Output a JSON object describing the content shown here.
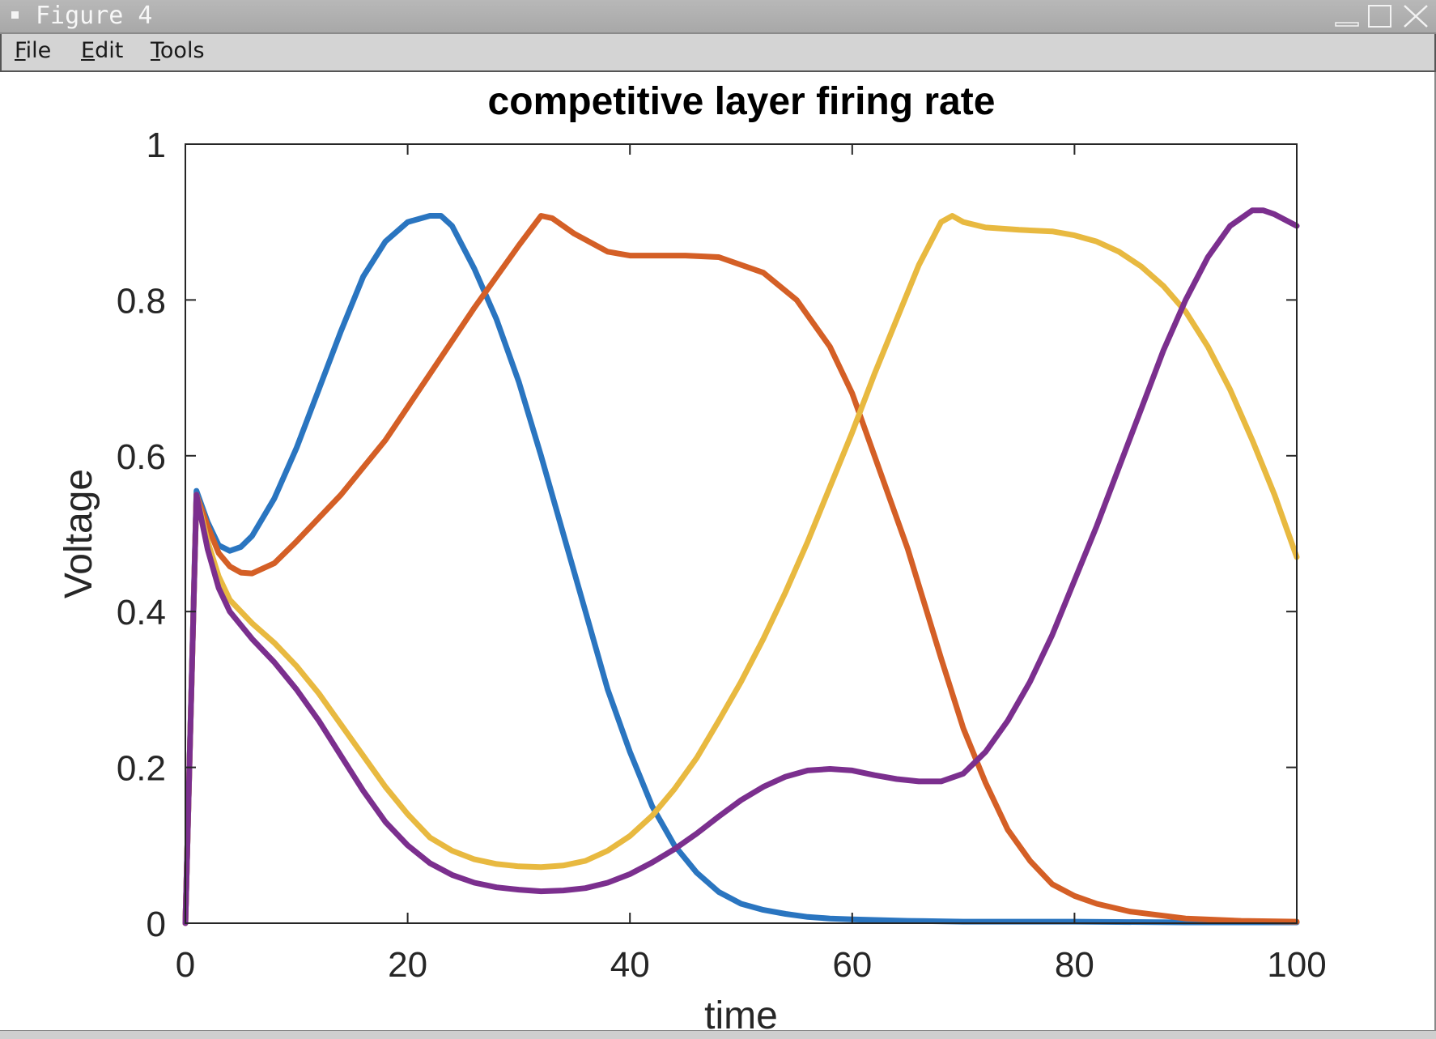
{
  "window": {
    "title": "Figure 4",
    "controls": [
      "minimize-icon",
      "maximize-icon",
      "close-icon"
    ]
  },
  "menu": {
    "file_mnemonic": "F",
    "file_rest": "ile",
    "edit_mnemonic": "E",
    "edit_rest": "dit",
    "tools_mnemonic": "T",
    "tools_rest": "ools"
  },
  "chart_data": {
    "type": "line",
    "title": "competitive layer firing rate",
    "xlabel": "time",
    "ylabel": "Voltage",
    "xlim": [
      0,
      100
    ],
    "ylim": [
      0,
      1
    ],
    "xticks": [
      "0",
      "20",
      "40",
      "60",
      "80",
      "100"
    ],
    "yticks": [
      "0",
      "0.2",
      "0.4",
      "0.6",
      "0.8",
      "1"
    ],
    "grid": false,
    "legend": "none",
    "series": [
      {
        "color": "#2a75c0",
        "x": [
          0,
          1,
          2,
          3,
          4,
          5,
          6,
          8,
          10,
          12,
          14,
          16,
          18,
          20,
          22,
          23,
          24,
          26,
          28,
          30,
          32,
          34,
          36,
          38,
          40,
          42,
          44,
          46,
          48,
          50,
          52,
          54,
          56,
          58,
          60,
          65,
          70,
          75,
          80,
          90,
          100
        ],
        "y": [
          0,
          0.555,
          0.515,
          0.485,
          0.478,
          0.483,
          0.497,
          0.545,
          0.61,
          0.685,
          0.76,
          0.83,
          0.875,
          0.9,
          0.908,
          0.908,
          0.895,
          0.84,
          0.775,
          0.695,
          0.6,
          0.5,
          0.4,
          0.3,
          0.22,
          0.15,
          0.1,
          0.065,
          0.04,
          0.025,
          0.017,
          0.012,
          0.008,
          0.006,
          0.005,
          0.003,
          0.002,
          0.002,
          0.002,
          0.001,
          0.001
        ]
      },
      {
        "color": "#d45f26",
        "x": [
          0,
          1,
          2,
          3,
          4,
          5,
          6,
          8,
          10,
          14,
          18,
          22,
          26,
          30,
          32,
          33,
          35,
          38,
          40,
          45,
          48,
          52,
          55,
          58,
          60,
          62,
          65,
          68,
          70,
          72,
          74,
          76,
          78,
          80,
          82,
          85,
          90,
          95,
          100
        ],
        "y": [
          0,
          0.55,
          0.51,
          0.475,
          0.458,
          0.45,
          0.449,
          0.462,
          0.49,
          0.55,
          0.62,
          0.705,
          0.79,
          0.87,
          0.908,
          0.905,
          0.885,
          0.862,
          0.857,
          0.857,
          0.855,
          0.835,
          0.8,
          0.74,
          0.68,
          0.6,
          0.48,
          0.34,
          0.25,
          0.18,
          0.12,
          0.08,
          0.05,
          0.035,
          0.025,
          0.015,
          0.006,
          0.003,
          0.002
        ]
      },
      {
        "color": "#e8b940",
        "x": [
          0,
          1,
          2,
          3,
          4,
          6,
          8,
          10,
          12,
          14,
          16,
          18,
          20,
          22,
          24,
          26,
          28,
          30,
          32,
          34,
          36,
          38,
          40,
          42,
          44,
          46,
          48,
          50,
          52,
          54,
          56,
          58,
          60,
          62,
          64,
          66,
          68,
          69,
          70,
          72,
          75,
          78,
          80,
          82,
          84,
          86,
          88,
          90,
          92,
          94,
          96,
          98,
          100
        ],
        "y": [
          0,
          0.55,
          0.49,
          0.445,
          0.415,
          0.385,
          0.36,
          0.33,
          0.295,
          0.255,
          0.215,
          0.175,
          0.14,
          0.11,
          0.093,
          0.082,
          0.076,
          0.073,
          0.072,
          0.074,
          0.08,
          0.093,
          0.112,
          0.138,
          0.172,
          0.212,
          0.26,
          0.31,
          0.365,
          0.425,
          0.49,
          0.56,
          0.63,
          0.705,
          0.775,
          0.845,
          0.9,
          0.908,
          0.9,
          0.893,
          0.89,
          0.888,
          0.883,
          0.875,
          0.862,
          0.843,
          0.818,
          0.785,
          0.74,
          0.685,
          0.62,
          0.55,
          0.47
        ]
      },
      {
        "color": "#7b2f8e",
        "x": [
          0,
          1,
          2,
          3,
          4,
          6,
          8,
          10,
          12,
          14,
          16,
          18,
          20,
          22,
          24,
          26,
          28,
          30,
          32,
          34,
          36,
          38,
          40,
          42,
          44,
          46,
          48,
          50,
          52,
          54,
          56,
          58,
          60,
          62,
          64,
          66,
          68,
          70,
          72,
          74,
          76,
          78,
          80,
          82,
          84,
          86,
          88,
          90,
          92,
          94,
          96,
          97,
          98,
          100
        ],
        "y": [
          0,
          0.55,
          0.48,
          0.43,
          0.4,
          0.365,
          0.335,
          0.3,
          0.26,
          0.215,
          0.17,
          0.13,
          0.1,
          0.077,
          0.062,
          0.052,
          0.046,
          0.043,
          0.041,
          0.042,
          0.045,
          0.052,
          0.063,
          0.078,
          0.095,
          0.115,
          0.137,
          0.158,
          0.175,
          0.188,
          0.196,
          0.198,
          0.196,
          0.19,
          0.185,
          0.182,
          0.182,
          0.192,
          0.22,
          0.26,
          0.31,
          0.37,
          0.44,
          0.51,
          0.585,
          0.66,
          0.735,
          0.8,
          0.855,
          0.895,
          0.915,
          0.915,
          0.91,
          0.895
        ]
      }
    ]
  }
}
